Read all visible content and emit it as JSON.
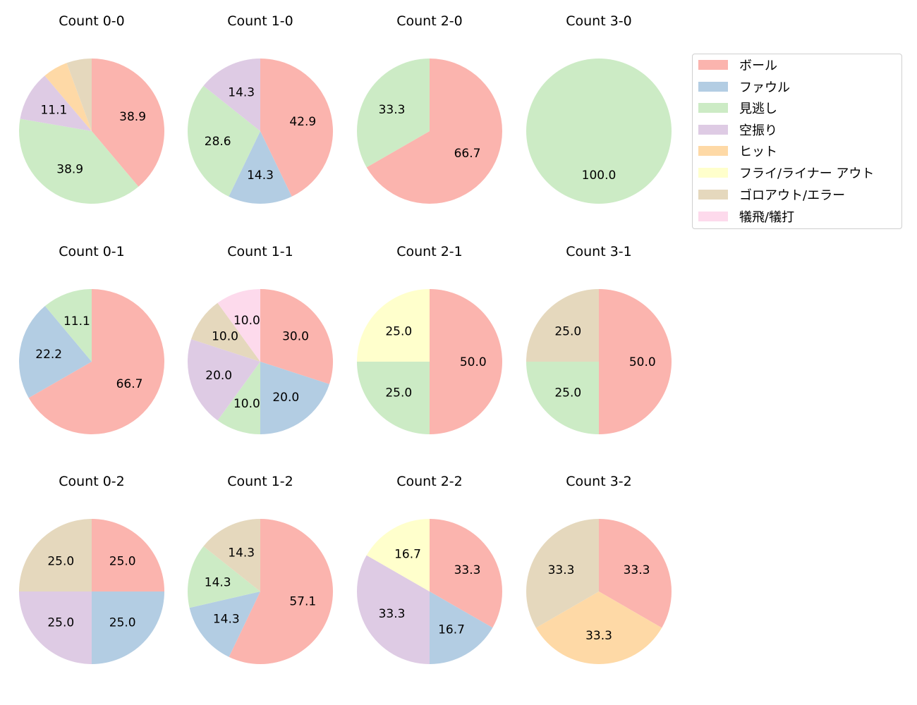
{
  "chart_data": {
    "type": "pie",
    "series_labels": [
      "ボール",
      "ファウル",
      "見逃し",
      "空振り",
      "ヒット",
      "フライ/ライナー アウト",
      "ゴロアウト/エラー",
      "犠飛/犠打"
    ],
    "colors": [
      "#fbb4ae",
      "#b3cde3",
      "#ccebc5",
      "#decbe4",
      "#fed9a6",
      "#ffffcc",
      "#e5d8bd",
      "#fddaec"
    ],
    "legend_position": "top-right",
    "charts": [
      {
        "title": "Count 0-0",
        "values": [
          38.9,
          0,
          38.9,
          11.1,
          5.6,
          0,
          5.6,
          0
        ],
        "labels": [
          "38.9",
          "",
          "38.9",
          "11.1",
          "",
          "",
          "",
          ""
        ]
      },
      {
        "title": "Count 1-0",
        "values": [
          42.9,
          14.3,
          28.6,
          14.3,
          0,
          0,
          0,
          0
        ],
        "labels": [
          "42.9",
          "14.3",
          "28.6",
          "14.3",
          "",
          "",
          "",
          ""
        ]
      },
      {
        "title": "Count 2-0",
        "values": [
          66.7,
          0,
          33.3,
          0,
          0,
          0,
          0,
          0
        ],
        "labels": [
          "66.7",
          "",
          "33.3",
          "",
          "",
          "",
          "",
          ""
        ]
      },
      {
        "title": "Count 3-0",
        "values": [
          0,
          0,
          100.0,
          0,
          0,
          0,
          0,
          0
        ],
        "labels": [
          "",
          "",
          "100.0",
          "",
          "",
          "",
          "",
          ""
        ]
      },
      {
        "title": "Count 0-1",
        "values": [
          66.7,
          22.2,
          11.1,
          0,
          0,
          0,
          0,
          0
        ],
        "labels": [
          "66.7",
          "22.2",
          "11.1",
          "",
          "",
          "",
          "",
          ""
        ]
      },
      {
        "title": "Count 1-1",
        "values": [
          30.0,
          20.0,
          10.0,
          20.0,
          0,
          0,
          10.0,
          10.0
        ],
        "labels": [
          "30.0",
          "20.0",
          "10.0",
          "20.0",
          "",
          "",
          "10.0",
          "10.0"
        ]
      },
      {
        "title": "Count 2-1",
        "values": [
          50.0,
          0,
          25.0,
          0,
          0,
          25.0,
          0,
          0
        ],
        "labels": [
          "50.0",
          "",
          "25.0",
          "",
          "",
          "25.0",
          "",
          ""
        ]
      },
      {
        "title": "Count 3-1",
        "values": [
          50.0,
          0,
          25.0,
          0,
          0,
          0,
          25.0,
          0
        ],
        "labels": [
          "50.0",
          "",
          "25.0",
          "",
          "",
          "",
          "25.0",
          ""
        ]
      },
      {
        "title": "Count 0-2",
        "values": [
          25.0,
          25.0,
          0,
          25.0,
          0,
          0,
          25.0,
          0
        ],
        "labels": [
          "25.0",
          "25.0",
          "",
          "25.0",
          "",
          "",
          "25.0",
          ""
        ]
      },
      {
        "title": "Count 1-2",
        "values": [
          57.1,
          14.3,
          14.3,
          0,
          0,
          0,
          14.3,
          0
        ],
        "labels": [
          "57.1",
          "14.3",
          "14.3",
          "",
          "",
          "",
          "14.3",
          ""
        ]
      },
      {
        "title": "Count 2-2",
        "values": [
          33.3,
          16.7,
          0,
          33.3,
          0,
          16.7,
          0,
          0
        ],
        "labels": [
          "33.3",
          "16.7",
          "",
          "33.3",
          "",
          "16.7",
          "",
          ""
        ]
      },
      {
        "title": "Count 3-2",
        "values": [
          33.3,
          0,
          0,
          0,
          33.3,
          0,
          33.3,
          0
        ],
        "labels": [
          "33.3",
          "",
          "",
          "",
          "33.3",
          "",
          "33.3",
          ""
        ]
      }
    ]
  }
}
